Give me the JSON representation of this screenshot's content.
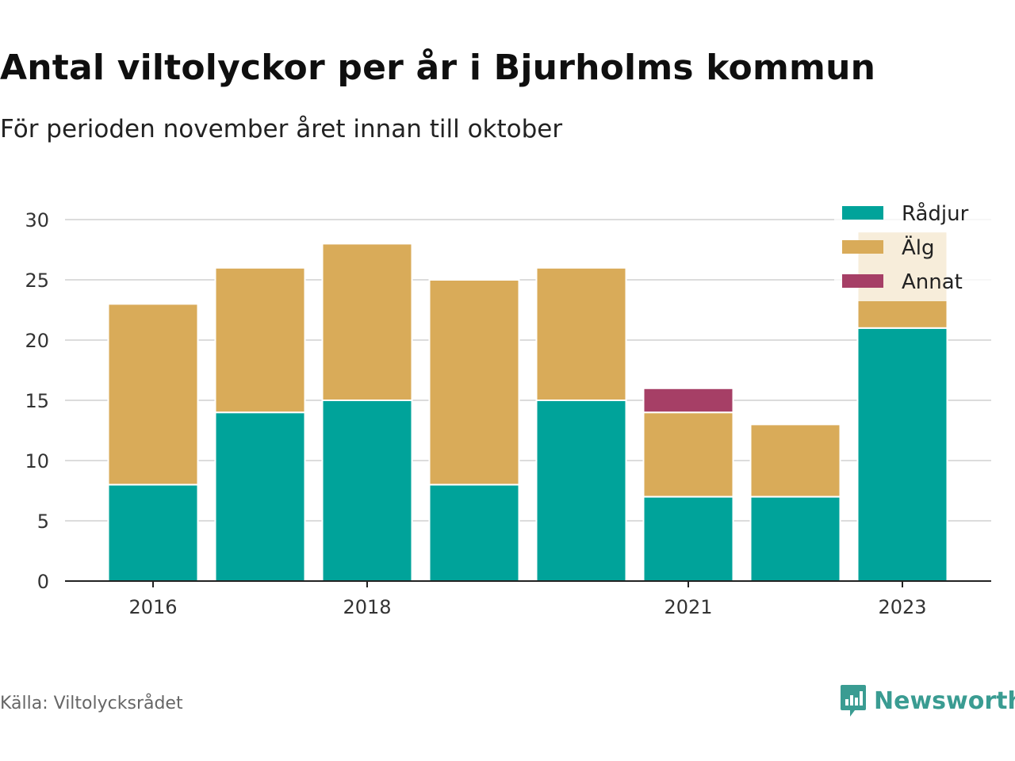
{
  "title": "Antal viltolyckor per år i Bjurholms kommun",
  "subtitle": "För perioden november året innan till oktober",
  "source": "Källa: Viltolycksrådet",
  "brand": {
    "name": "Newsworthy",
    "icon": "newsworthy-logo-icon",
    "color": "#3a9c92"
  },
  "chart_data": {
    "type": "bar",
    "stacked": true,
    "categories": [
      "2016",
      "2017",
      "2018",
      "2019",
      "2020",
      "2021",
      "2022",
      "2023"
    ],
    "x_tick_labels": [
      "2016",
      "",
      "2018",
      "",
      "",
      "2021",
      "",
      "2023"
    ],
    "series": [
      {
        "name": "Rådjur",
        "color": "#00a39a",
        "values": [
          8,
          14,
          15,
          8,
          15,
          7,
          7,
          21
        ]
      },
      {
        "name": "Älg",
        "color": "#d9ab59",
        "values": [
          15,
          12,
          13,
          17,
          11,
          7,
          6,
          8
        ]
      },
      {
        "name": "Annat",
        "color": "#a63f66",
        "values": [
          0,
          0,
          0,
          0,
          0,
          2,
          0,
          0
        ]
      }
    ],
    "ylim": [
      0,
      30
    ],
    "yticks": [
      0,
      5,
      10,
      15,
      20,
      25,
      30
    ],
    "grid": true,
    "legend_position": "top-right"
  }
}
